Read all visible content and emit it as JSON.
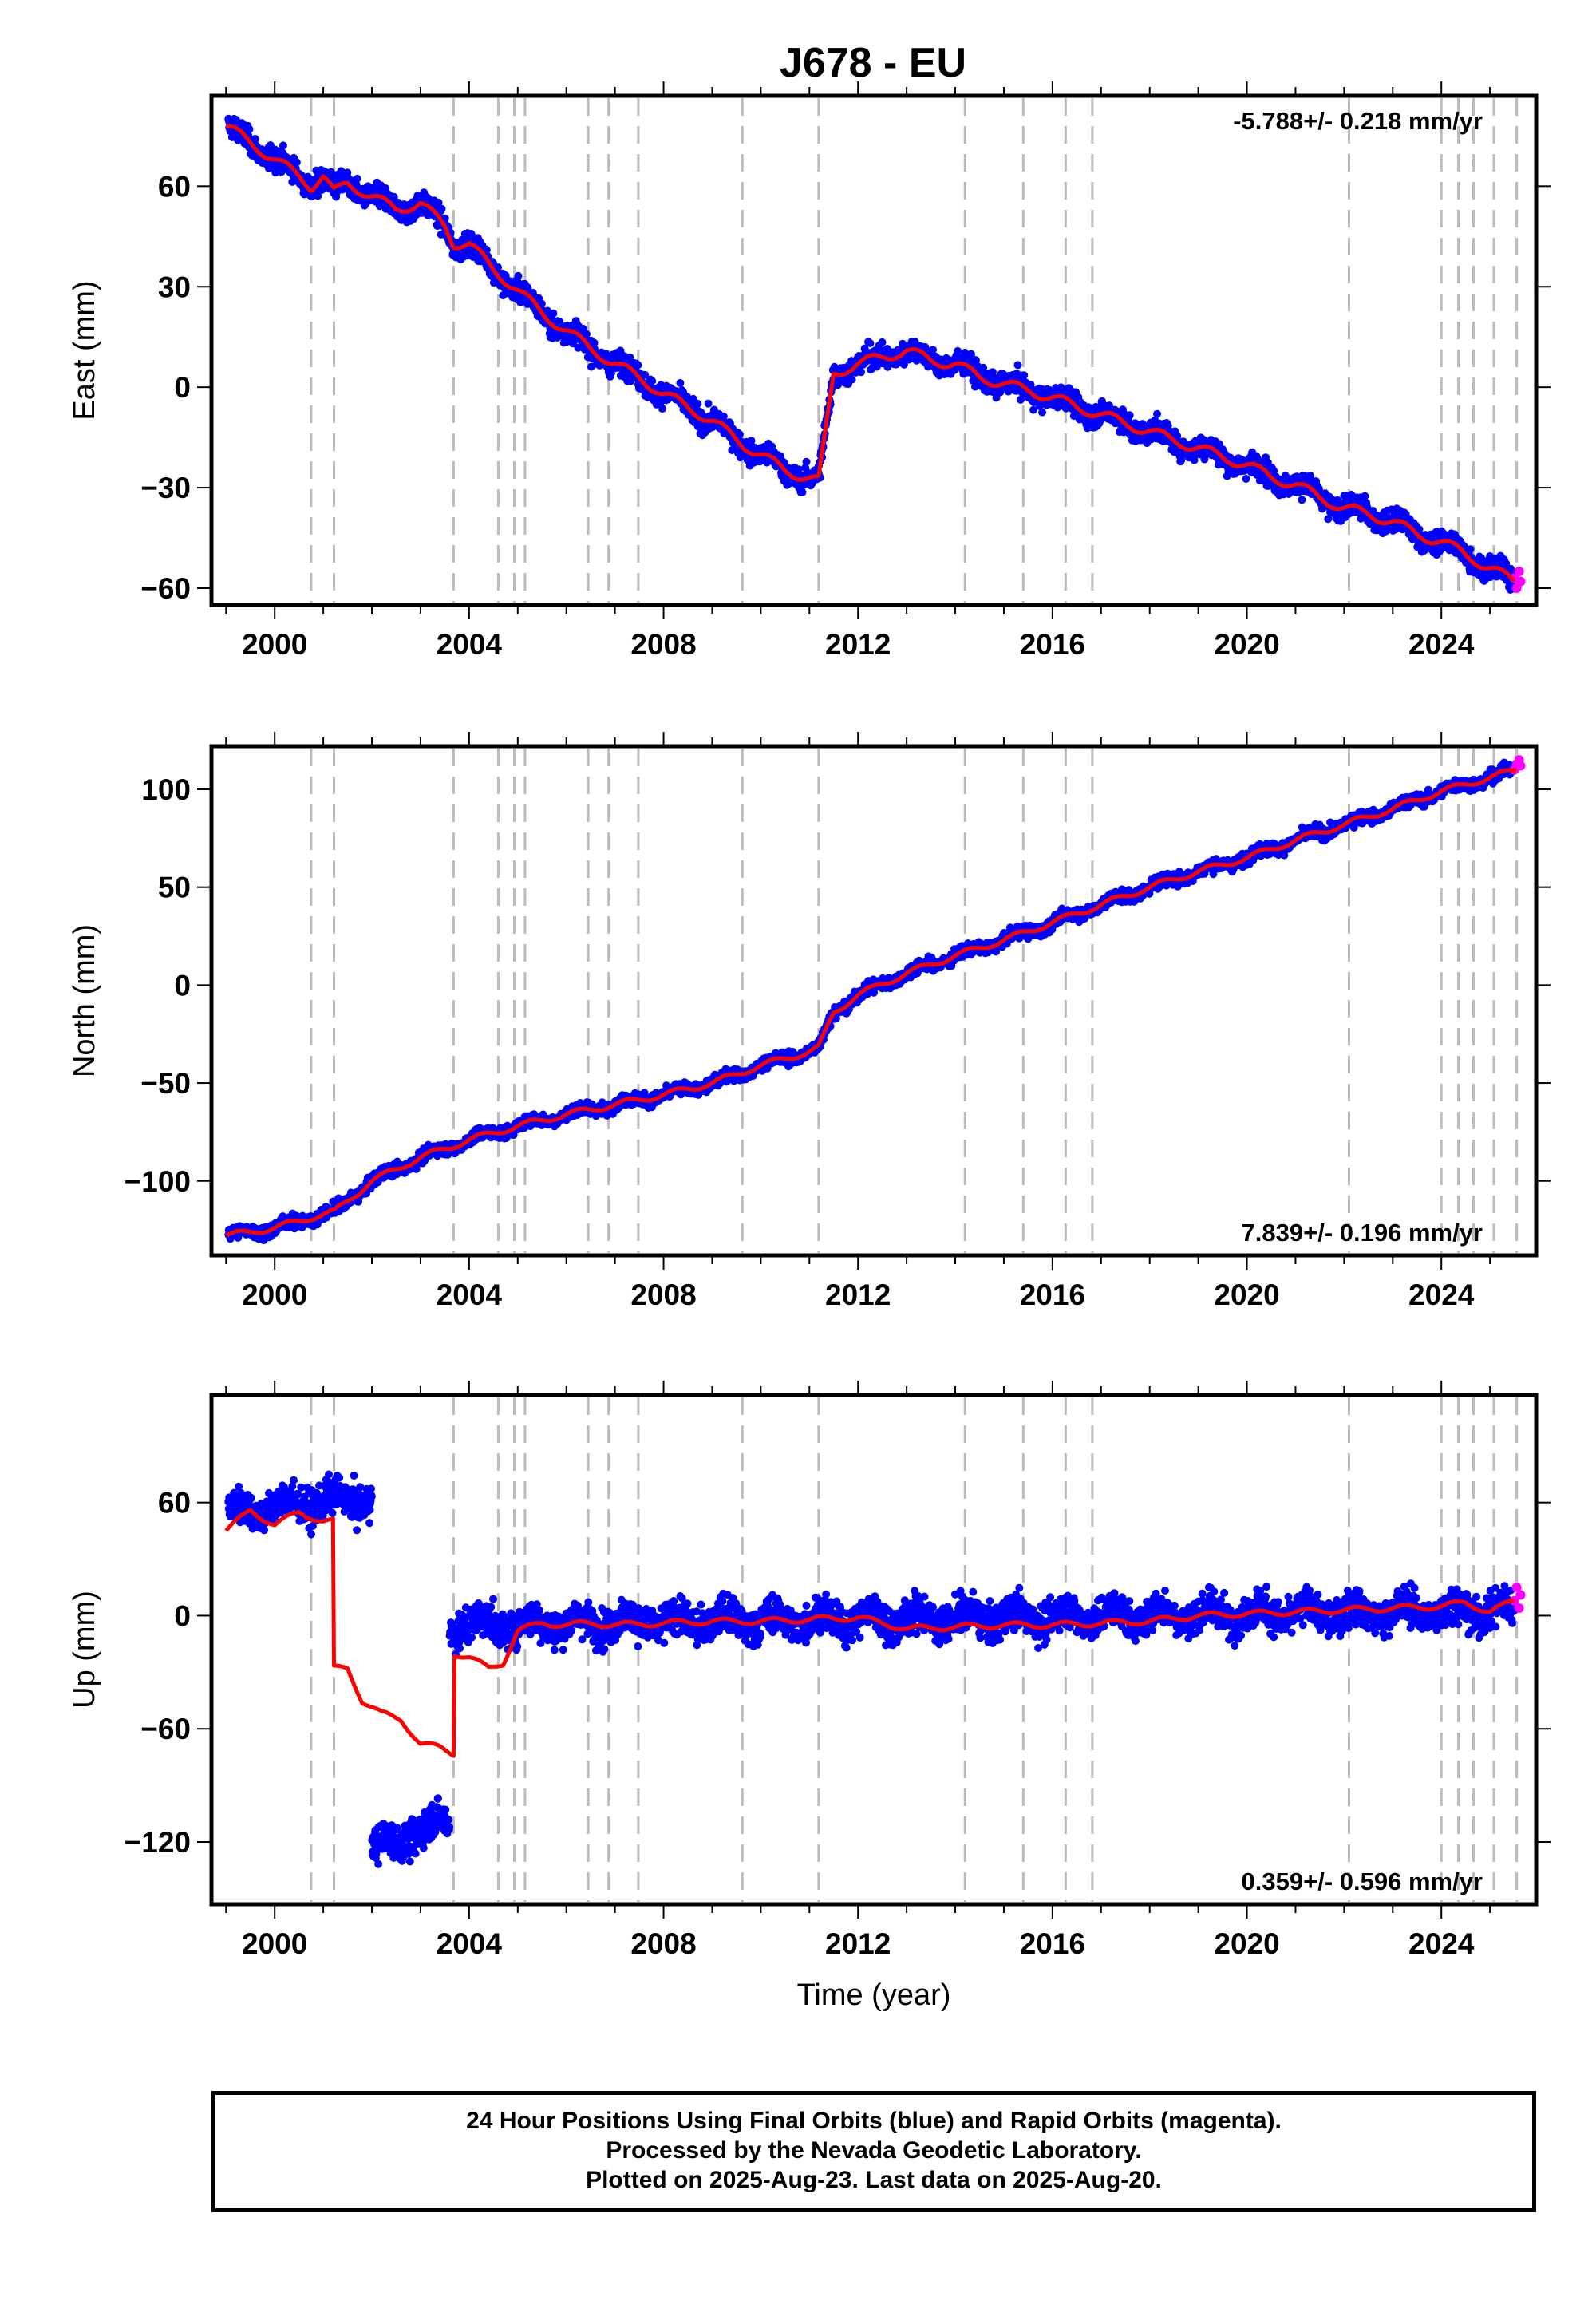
{
  "title": "J678 - EU",
  "caption": {
    "line1": "24 Hour Positions Using Final Orbits (blue) and Rapid Orbits (magenta).",
    "line2": "Processed by the Nevada Geodetic Laboratory.",
    "line3": "Plotted on 2025-Aug-23. Last data on 2025-Aug-20."
  },
  "colors": {
    "final": "#0000ff",
    "rapid": "#ff00ff",
    "model": "#ff0000",
    "steps": "#bbbbbb"
  },
  "chart_data": [
    {
      "type": "scatter",
      "xlabel": "",
      "ylabel": "East (mm)",
      "xlim": [
        1998.7,
        2025.95
      ],
      "ylim": [
        -65,
        87
      ],
      "xticks": [
        2000,
        2004,
        2008,
        2012,
        2016,
        2020,
        2024
      ],
      "yticks": [
        60,
        30,
        0,
        -30,
        -60
      ],
      "rate": "-5.788+/- 0.218 mm/yr",
      "rate_position": "top-right",
      "step_epochs": [
        2000.75,
        2001.22,
        2003.68,
        2004.6,
        2004.93,
        2005.15,
        2006.45,
        2006.87,
        2007.48,
        2009.62,
        2011.19,
        2014.2,
        2015.4,
        2016.27,
        2016.82,
        2022.1,
        2024.0,
        2024.35,
        2024.66,
        2025.08,
        2025.55
      ],
      "x": [
        1999.0,
        1999.5,
        2000.0,
        2000.5,
        2000.75,
        2001.0,
        2001.22,
        2001.5,
        2002.0,
        2002.5,
        2003.0,
        2003.5,
        2003.68,
        2004.0,
        2004.5,
        2004.93,
        2005.5,
        2006.0,
        2006.45,
        2007.0,
        2007.48,
        2008.0,
        2008.5,
        2009.0,
        2009.62,
        2010.0,
        2010.5,
        2011.0,
        2011.19,
        2011.5,
        2012.0,
        2012.5,
        2013.0,
        2013.5,
        2014.0,
        2014.5,
        2015.0,
        2015.5,
        2016.0,
        2016.5,
        2017.0,
        2017.5,
        2018.0,
        2018.5,
        2019.0,
        2019.5,
        2020.0,
        2020.5,
        2021.0,
        2021.5,
        2022.0,
        2022.5,
        2023.0,
        2023.5,
        2024.0,
        2024.5,
        2025.0,
        2025.5
      ],
      "y": [
        78,
        73,
        68,
        63,
        60,
        63,
        58,
        61,
        57,
        53,
        55,
        48,
        43,
        43,
        35,
        30,
        22,
        17,
        12,
        7,
        3,
        -2,
        -6,
        -10,
        -17,
        -20,
        -25,
        -27,
        -28,
        4,
        7,
        9,
        11,
        8,
        7,
        3,
        1,
        -1,
        -3,
        -6,
        -8,
        -11,
        -13,
        -16,
        -18,
        -21,
        -23,
        -27,
        -29,
        -33,
        -36,
        -38,
        -40,
        -44,
        -46,
        -50,
        -54,
        -58
      ],
      "series": [
        {
          "name": "Final Orbits",
          "color": "#0000ff",
          "scatter": 2.8
        },
        {
          "name": "Rapid Orbits",
          "color": "#ff00ff",
          "x": [
            2025.5,
            2025.55,
            2025.6,
            2025.63
          ],
          "y": [
            -57,
            -60,
            -55,
            -58
          ]
        }
      ]
    },
    {
      "type": "scatter",
      "xlabel": "",
      "ylabel": "North (mm)",
      "xlim": [
        1998.7,
        2025.95
      ],
      "ylim": [
        -138,
        122
      ],
      "xticks": [
        2000,
        2004,
        2008,
        2012,
        2016,
        2020,
        2024
      ],
      "yticks": [
        100,
        50,
        0,
        -50,
        -100
      ],
      "rate": "7.839+/- 0.196 mm/yr",
      "rate_position": "bottom-right",
      "step_epochs": [
        2000.75,
        2001.22,
        2003.68,
        2004.6,
        2004.93,
        2005.15,
        2006.45,
        2006.87,
        2007.48,
        2009.62,
        2011.19,
        2014.2,
        2015.4,
        2016.27,
        2016.82,
        2022.1,
        2024.0,
        2024.35,
        2024.66,
        2025.08,
        2025.55
      ],
      "x": [
        1999.0,
        2000.0,
        2001.0,
        2001.22,
        2002.0,
        2003.0,
        2003.68,
        2004.0,
        2005.0,
        2006.0,
        2007.0,
        2008.0,
        2009.0,
        2010.0,
        2011.0,
        2011.19,
        2011.5,
        2012.0,
        2013.0,
        2014.0,
        2015.0,
        2016.0,
        2017.0,
        2018.0,
        2019.0,
        2020.0,
        2021.0,
        2022.0,
        2023.0,
        2024.0,
        2025.0,
        2025.55
      ],
      "y": [
        -128,
        -124,
        -117,
        -116,
        -100,
        -88,
        -82,
        -79,
        -72,
        -66,
        -61,
        -56,
        -50,
        -41,
        -34,
        -32,
        -14,
        -5,
        6,
        15,
        23,
        32,
        41,
        50,
        58,
        65,
        74,
        82,
        90,
        99,
        106,
        110
      ],
      "series": [
        {
          "name": "Final Orbits",
          "color": "#0000ff",
          "scatter": 2.6
        },
        {
          "name": "Rapid Orbits",
          "color": "#ff00ff",
          "x": [
            2025.5,
            2025.55,
            2025.6,
            2025.63
          ],
          "y": [
            110,
            113,
            115,
            112
          ]
        }
      ]
    },
    {
      "type": "scatter",
      "xlabel": "Time (year)",
      "ylabel": "Up (mm)",
      "xlim": [
        1998.7,
        2025.95
      ],
      "ylim": [
        -153,
        117
      ],
      "xticks": [
        2000,
        2004,
        2008,
        2012,
        2016,
        2020,
        2024
      ],
      "yticks": [
        60,
        0,
        -60,
        -120
      ],
      "rate": "0.359+/- 0.596 mm/yr",
      "rate_position": "bottom-right",
      "step_epochs": [
        2000.75,
        2001.22,
        2003.68,
        2004.6,
        2004.93,
        2005.15,
        2006.45,
        2006.87,
        2007.48,
        2009.62,
        2011.19,
        2014.2,
        2015.4,
        2016.27,
        2016.82,
        2022.1,
        2024.0,
        2024.35,
        2024.66,
        2025.08,
        2025.55
      ],
      "x": [
        1999.0,
        1999.5,
        2000.0,
        2000.5,
        2001.0,
        2001.2,
        2001.22,
        2001.5,
        2001.8,
        2002.2,
        2002.6,
        2003.0,
        2003.4,
        2003.68,
        2003.7,
        2004.0,
        2004.4,
        2004.7,
        2005.0,
        2005.5,
        2006.0,
        2006.5,
        2007.0,
        2008.0,
        2009.0,
        2010.0,
        2011.0,
        2012.0,
        2013.0,
        2014.0,
        2015.0,
        2016.0,
        2017.0,
        2018.0,
        2019.0,
        2020.0,
        2021.0,
        2022.0,
        2023.0,
        2024.0,
        2024.5,
        2025.0,
        2025.5
      ],
      "y": [
        45,
        56,
        48,
        55,
        50,
        50,
        -28,
        -28,
        -45,
        -52,
        -55,
        -68,
        -70,
        -73,
        -20,
        -22,
        -28,
        -25,
        -8,
        -4,
        -5,
        -4,
        -5,
        -4,
        -3,
        -3,
        -2,
        -1,
        -7,
        -6,
        -5,
        -5,
        -4,
        -3,
        0,
        1,
        2,
        3,
        4,
        5,
        7,
        2,
        8
      ],
      "series": [
        {
          "name": "Final Orbits",
          "color": "#0000ff",
          "scatter": 8,
          "segments": [
            {
              "x0": 1999.0,
              "x1": 2002.0,
              "y0": 55,
              "y1": 63
            },
            {
              "x0": 2002.0,
              "x1": 2003.6,
              "y0": -125,
              "y1": -108
            },
            {
              "x0": 2003.6,
              "x1": 2025.5,
              "y0": -5,
              "y1": 3
            }
          ]
        },
        {
          "name": "Rapid Orbits",
          "color": "#ff00ff",
          "x": [
            2025.5,
            2025.55,
            2025.6,
            2025.63
          ],
          "y": [
            8,
            15,
            4,
            11
          ]
        }
      ]
    }
  ]
}
